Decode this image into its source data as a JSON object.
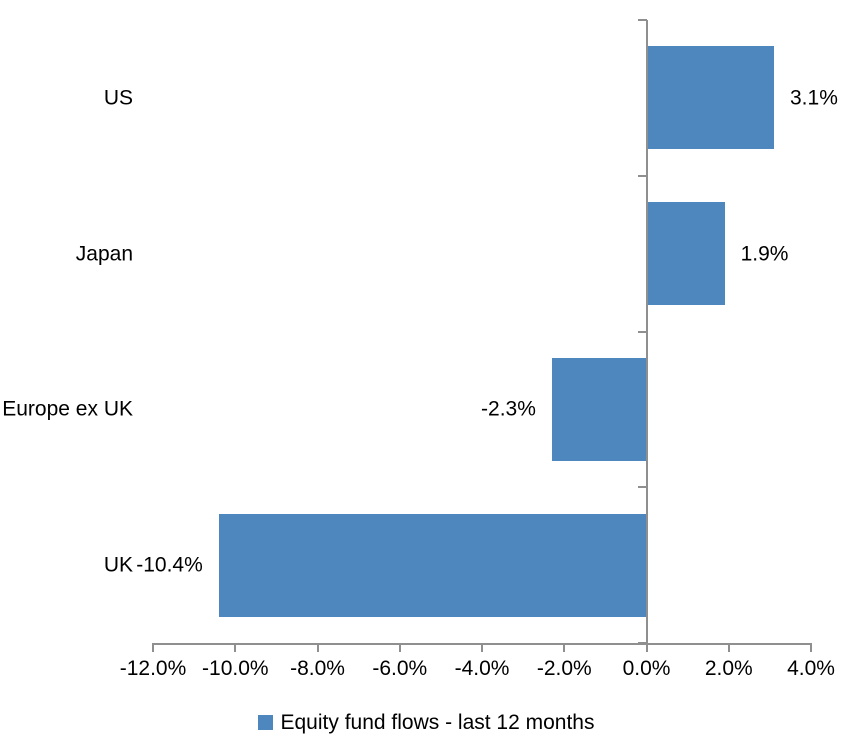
{
  "chart_data": {
    "type": "bar",
    "orientation": "horizontal",
    "title": "",
    "categories": [
      "US",
      "Japan",
      "Europe ex UK",
      "UK"
    ],
    "series": [
      {
        "name": "Equity fund flows - last 12 months",
        "values": [
          3.1,
          1.9,
          -2.3,
          -10.4
        ],
        "value_labels": [
          "3.1%",
          "1.9%",
          "-2.3%",
          "-10.4%"
        ]
      }
    ],
    "xlabel": "",
    "ylabel": "",
    "xlim": [
      -12,
      4
    ],
    "x_tick_step": 2,
    "x_tick_labels": [
      "-12.0%",
      "-10.0%",
      "-8.0%",
      "-6.0%",
      "-4.0%",
      "-2.0%",
      "0.0%",
      "2.0%",
      "4.0%"
    ],
    "grid": false,
    "legend_position": "bottom-center",
    "colors": {
      "bar": "#4D87BD",
      "axis": "#8F8F8F",
      "text": "#000000",
      "background": "#FFFFFF"
    },
    "legend": {
      "label": "Equity fund flows - last 12 months",
      "swatch_color": "#4D87BD"
    }
  }
}
